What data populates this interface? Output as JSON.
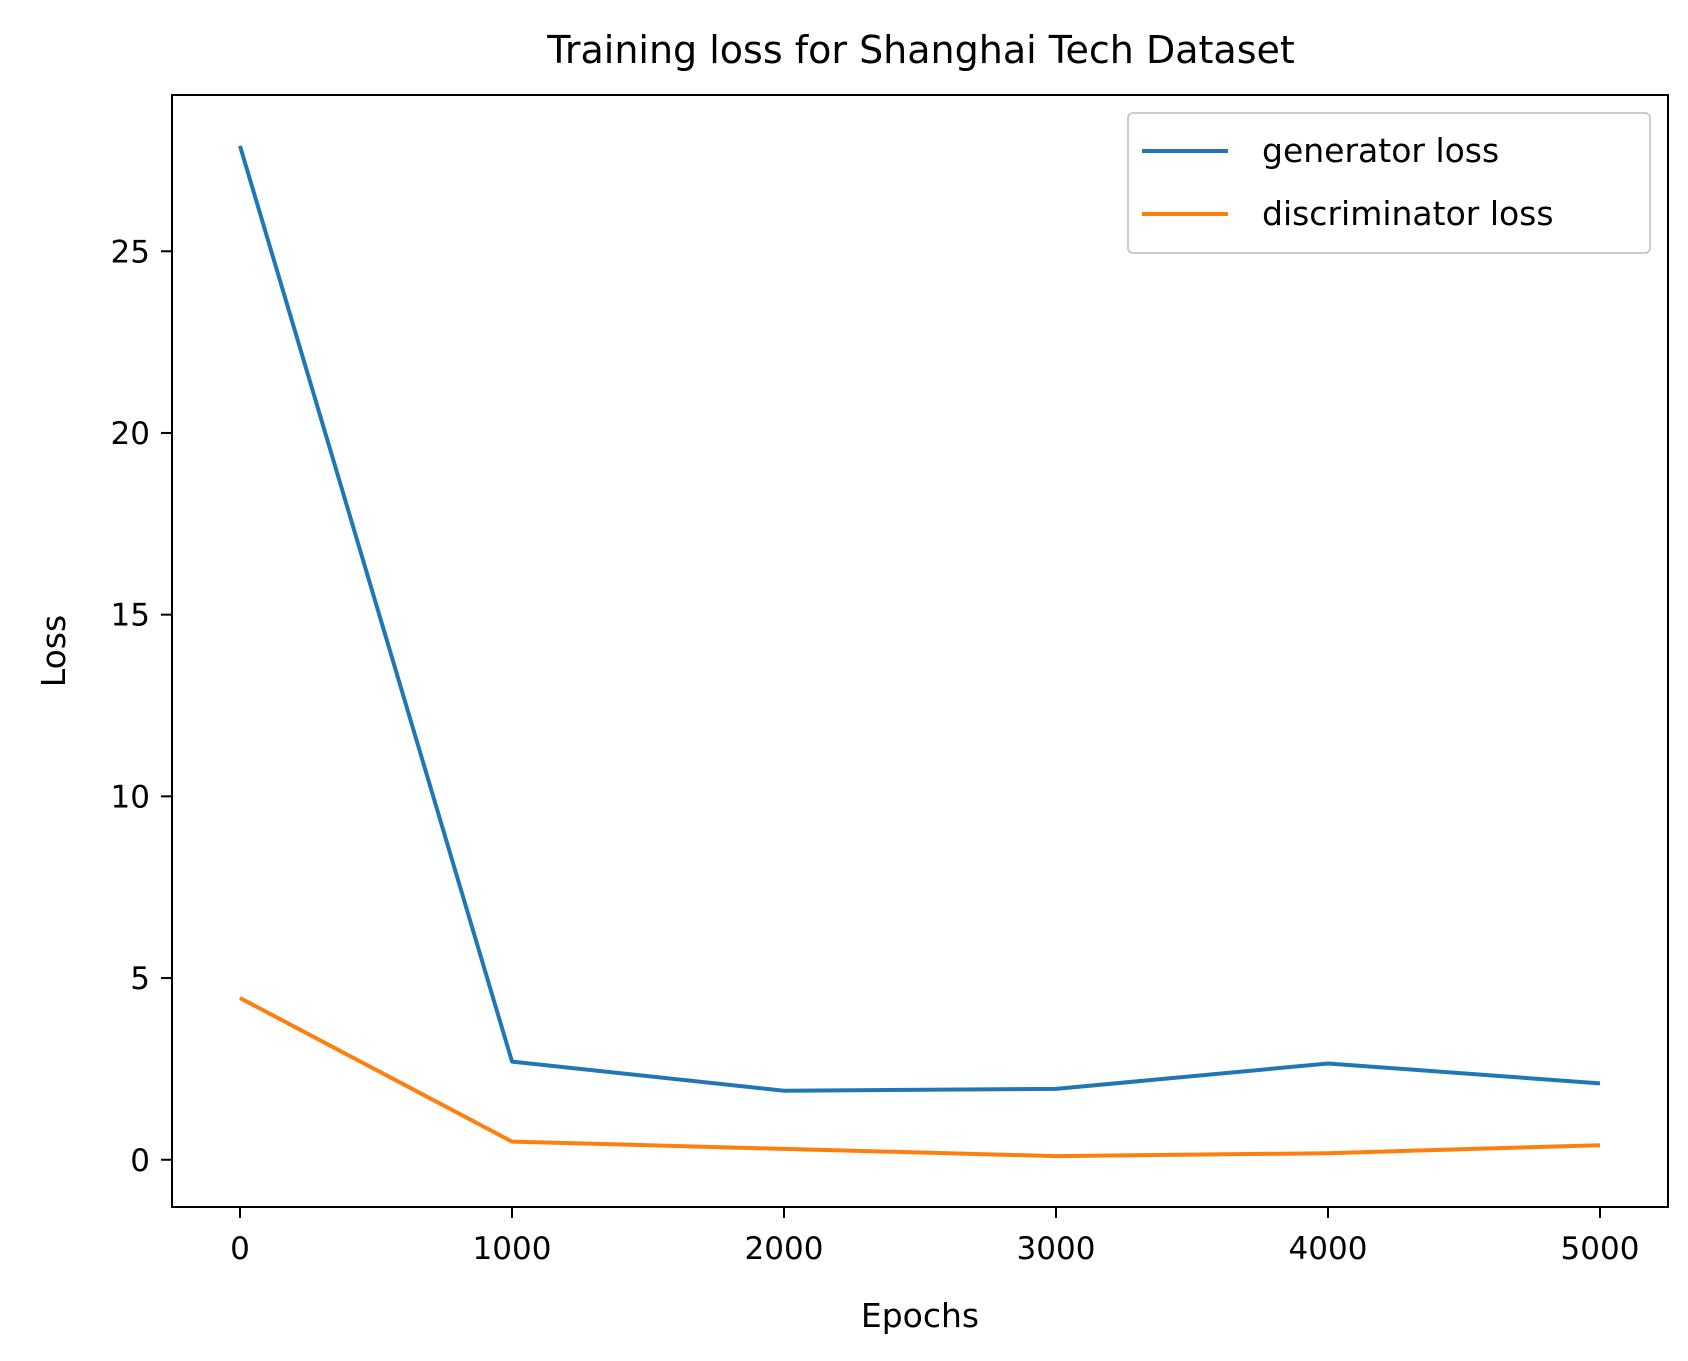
{
  "chart_data": {
    "type": "line",
    "title": "Training loss for Shanghai Tech Dataset",
    "xlabel": "Epochs",
    "ylabel": "Loss",
    "x": [
      0,
      1000,
      2000,
      3000,
      4000,
      5000
    ],
    "series": [
      {
        "name": "generator loss",
        "color": "#1f77b4",
        "values": [
          27.9,
          2.7,
          1.9,
          1.95,
          2.65,
          2.1
        ]
      },
      {
        "name": "discriminator loss",
        "color": "#ff7f0e",
        "values": [
          4.45,
          0.5,
          0.3,
          0.1,
          0.18,
          0.4
        ]
      }
    ],
    "xlim": [
      -250,
      5250
    ],
    "ylim": [
      -1.3,
      29.3
    ],
    "xticks": [
      0,
      1000,
      2000,
      3000,
      4000,
      5000
    ],
    "xtick_labels": [
      "0",
      "1000",
      "2000",
      "3000",
      "4000",
      "5000"
    ],
    "yticks": [
      0,
      5,
      10,
      15,
      20,
      25
    ],
    "ytick_labels": [
      "0",
      "5",
      "10",
      "15",
      "20",
      "25"
    ],
    "grid": false,
    "legend_position": "top-right"
  }
}
